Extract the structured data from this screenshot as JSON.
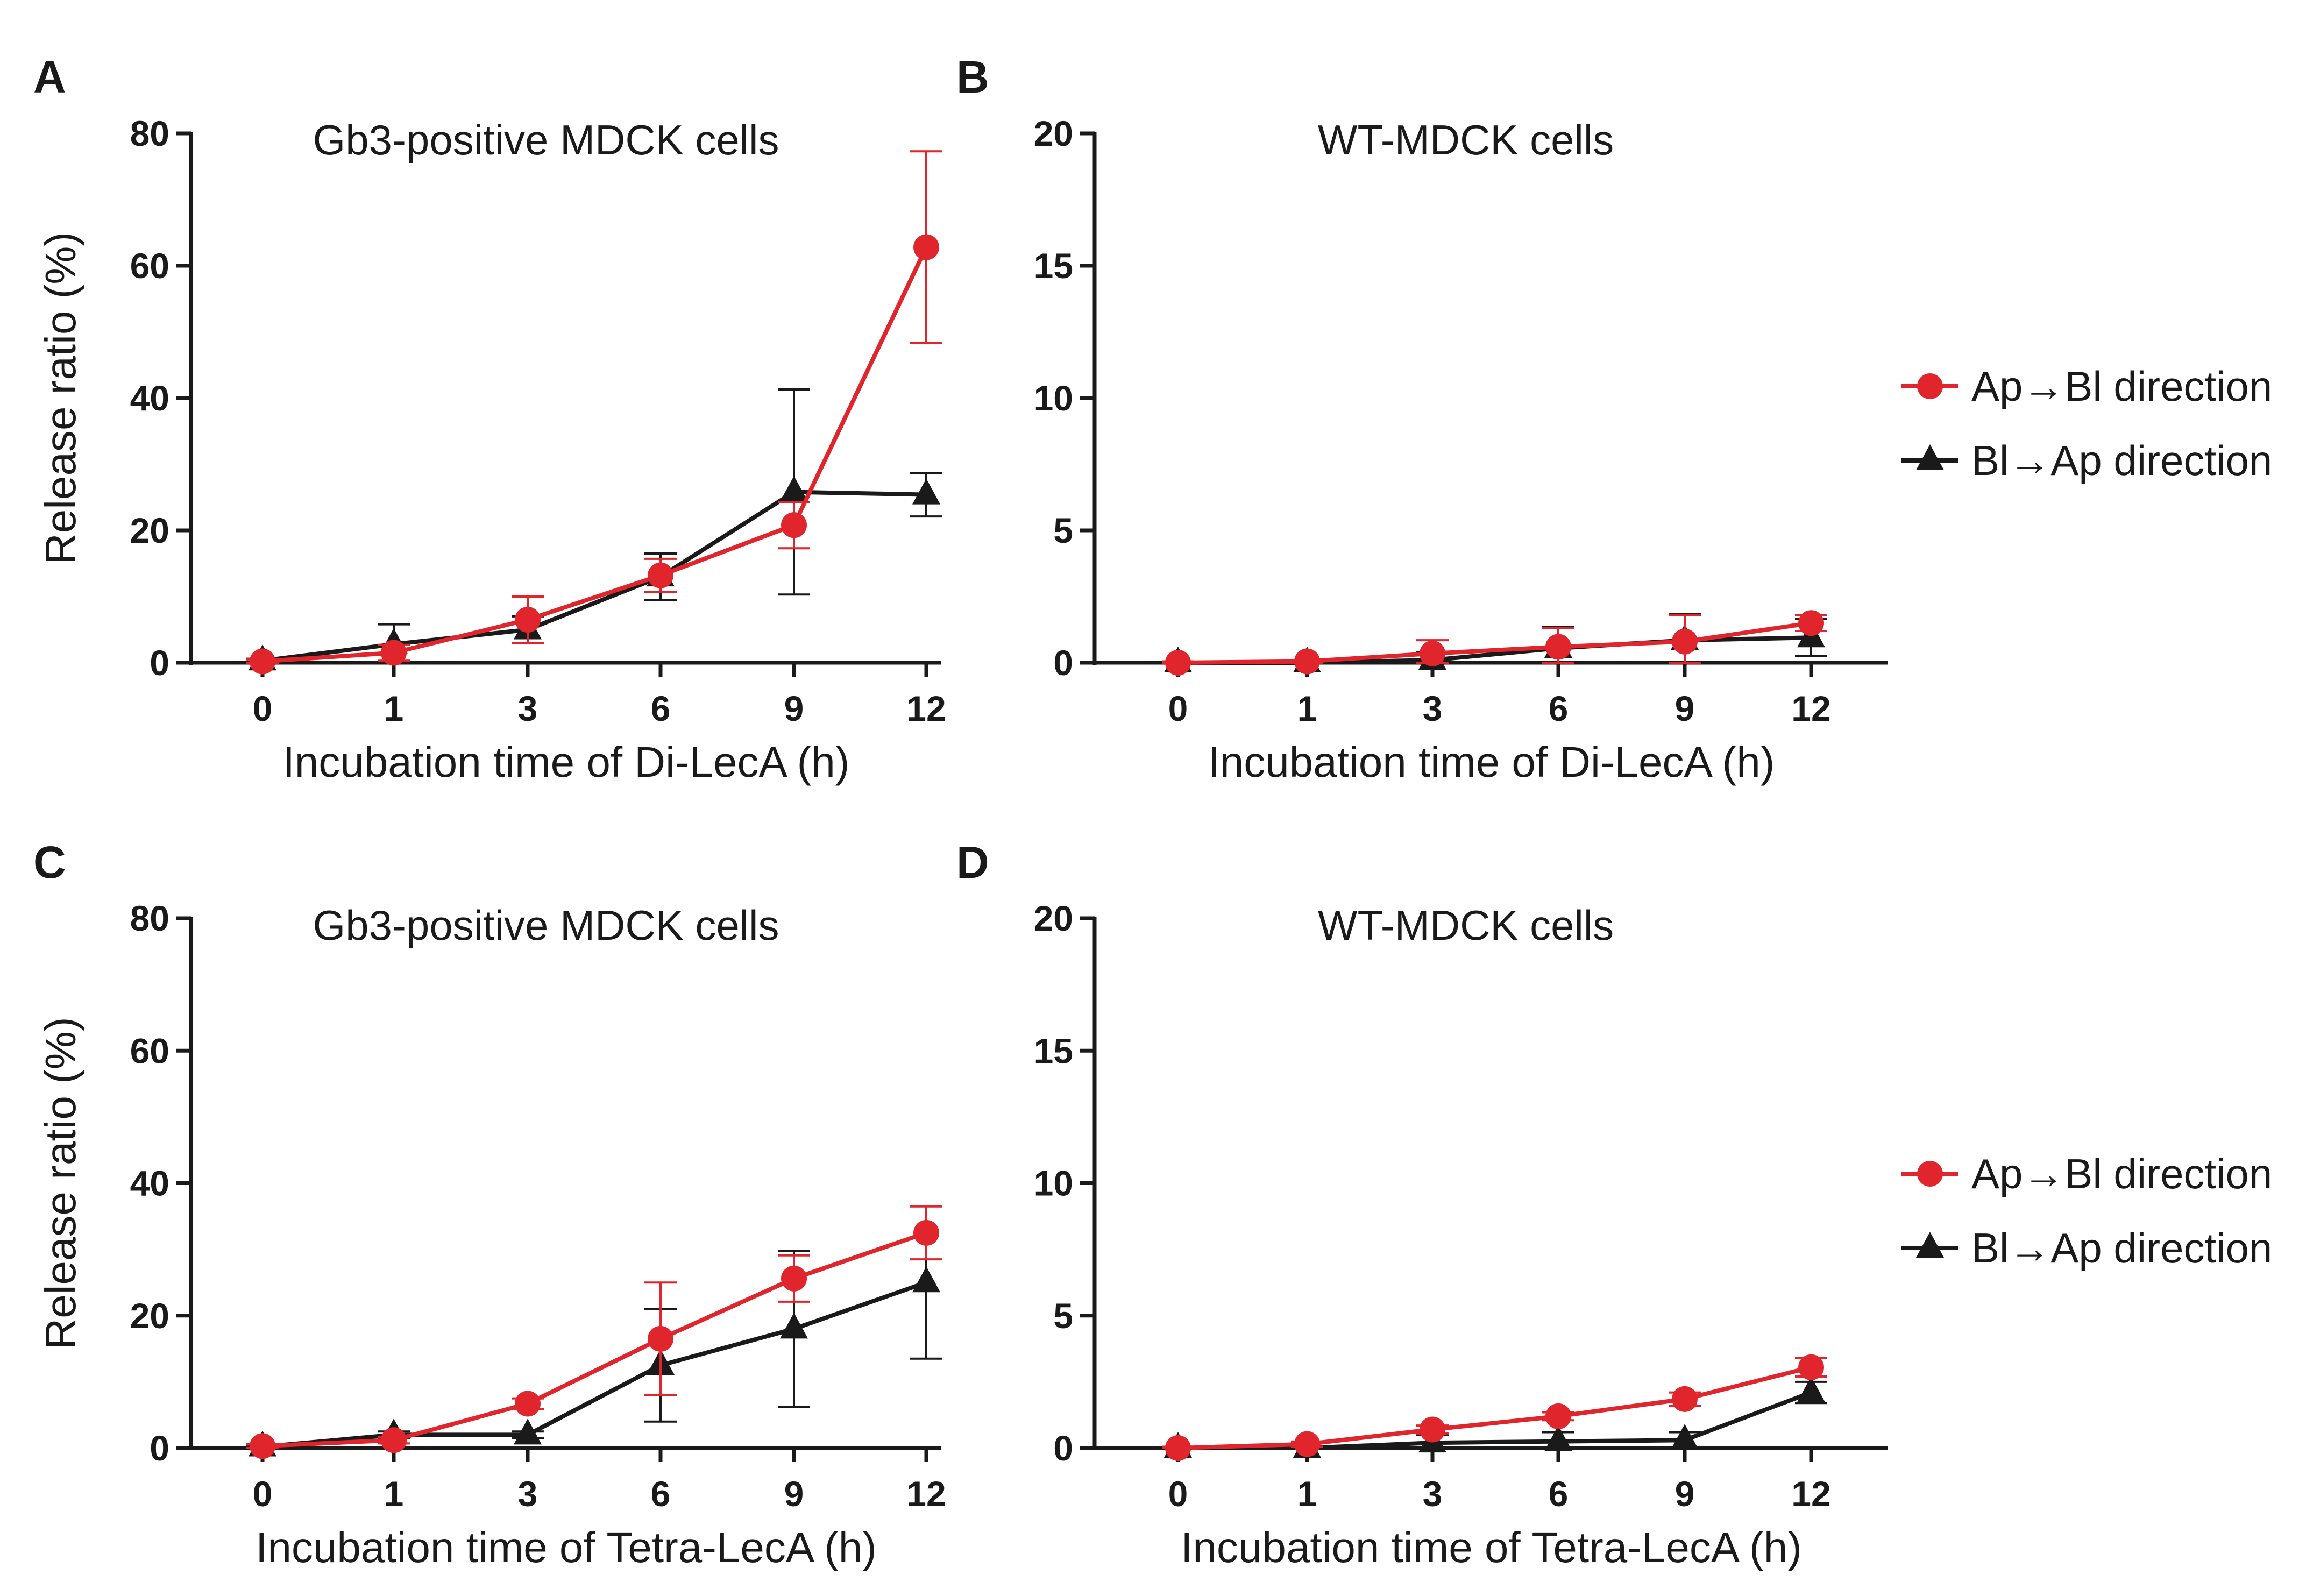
{
  "colors": {
    "red": "#e0262c",
    "black": "#1a1a1a",
    "axis": "#1a1a1a"
  },
  "legend": [
    {
      "label": "Ap→Bl direction",
      "color": "#e0262c",
      "marker": "circle"
    },
    {
      "label": "Bl→Ap direction",
      "color": "#1a1a1a",
      "marker": "triangle"
    }
  ],
  "chart_data": [
    {
      "panel": "A",
      "type": "line",
      "title": "Gb3-positive MDCK cells",
      "xlabel": "Incubation time of Di-LecA (h)",
      "ylabel": "Release ratio (%)",
      "categories": [
        "0",
        "1",
        "3",
        "6",
        "9",
        "12"
      ],
      "ylim": [
        0,
        80
      ],
      "yticks": [
        0,
        20,
        40,
        60,
        80
      ],
      "series": [
        {
          "name": "Ap→Bl direction",
          "color": "#e0262c",
          "marker": "circle",
          "values": [
            0.2,
            1.5,
            6.5,
            13.2,
            20.8,
            62.8
          ],
          "errors": [
            0.3,
            1.2,
            3.5,
            2.5,
            3.5,
            14.5
          ]
        },
        {
          "name": "Bl→Ap direction",
          "color": "#1a1a1a",
          "marker": "triangle",
          "values": [
            0.3,
            2.8,
            5.0,
            13.0,
            25.8,
            25.4
          ],
          "errors": [
            0.3,
            3.0,
            2.0,
            3.5,
            15.5,
            3.3
          ]
        }
      ]
    },
    {
      "panel": "B",
      "type": "line",
      "title": "WT-MDCK cells",
      "xlabel": "Incubation time of Di-LecA (h)",
      "ylabel": "",
      "categories": [
        "0",
        "1",
        "3",
        "6",
        "9",
        "12"
      ],
      "ylim": [
        0,
        20
      ],
      "yticks": [
        0,
        5,
        10,
        15,
        20
      ],
      "series": [
        {
          "name": "Ap→Bl direction",
          "color": "#e0262c",
          "marker": "circle",
          "values": [
            0.0,
            0.05,
            0.35,
            0.6,
            0.8,
            1.5
          ],
          "errors": [
            0.05,
            0.05,
            0.5,
            0.7,
            1.0,
            0.3
          ]
        },
        {
          "name": "Bl→Ap direction",
          "color": "#1a1a1a",
          "marker": "triangle",
          "values": [
            0.0,
            0.0,
            0.1,
            0.55,
            0.85,
            0.95
          ],
          "errors": [
            0.05,
            0.05,
            0.3,
            0.8,
            1.0,
            0.7
          ]
        }
      ]
    },
    {
      "panel": "C",
      "type": "line",
      "title": "Gb3-positive MDCK cells",
      "xlabel": "Incubation time of Tetra-LecA (h)",
      "ylabel": "Release ratio (%)",
      "categories": [
        "0",
        "1",
        "3",
        "6",
        "9",
        "12"
      ],
      "ylim": [
        0,
        80
      ],
      "yticks": [
        0,
        20,
        40,
        60,
        80
      ],
      "series": [
        {
          "name": "Ap→Bl direction",
          "color": "#e0262c",
          "marker": "circle",
          "values": [
            0.3,
            1.2,
            6.7,
            16.5,
            25.6,
            32.5
          ],
          "errors": [
            0.3,
            0.5,
            0.8,
            8.5,
            3.5,
            4.0
          ]
        },
        {
          "name": "Bl→Ap direction",
          "color": "#1a1a1a",
          "marker": "triangle",
          "values": [
            0.2,
            2.0,
            2.0,
            12.5,
            18.0,
            25.0
          ],
          "errors": [
            0.3,
            0.5,
            0.5,
            8.5,
            11.8,
            11.5
          ]
        }
      ]
    },
    {
      "panel": "D",
      "type": "line",
      "title": "WT-MDCK cells",
      "xlabel": "Incubation time of Tetra-LecA (h)",
      "ylabel": "",
      "categories": [
        "0",
        "1",
        "3",
        "6",
        "9",
        "12"
      ],
      "ylim": [
        0,
        20
      ],
      "yticks": [
        0,
        5,
        10,
        15,
        20
      ],
      "series": [
        {
          "name": "Ap→Bl direction",
          "color": "#e0262c",
          "marker": "circle",
          "values": [
            0.0,
            0.15,
            0.7,
            1.2,
            1.85,
            3.05
          ],
          "errors": [
            0.05,
            0.1,
            0.15,
            0.15,
            0.25,
            0.35
          ]
        },
        {
          "name": "Bl→Ap direction",
          "color": "#1a1a1a",
          "marker": "triangle",
          "values": [
            0.0,
            0.0,
            0.2,
            0.25,
            0.3,
            2.1
          ],
          "errors": [
            0.05,
            0.05,
            0.3,
            0.35,
            0.3,
            0.4
          ]
        }
      ]
    }
  ]
}
